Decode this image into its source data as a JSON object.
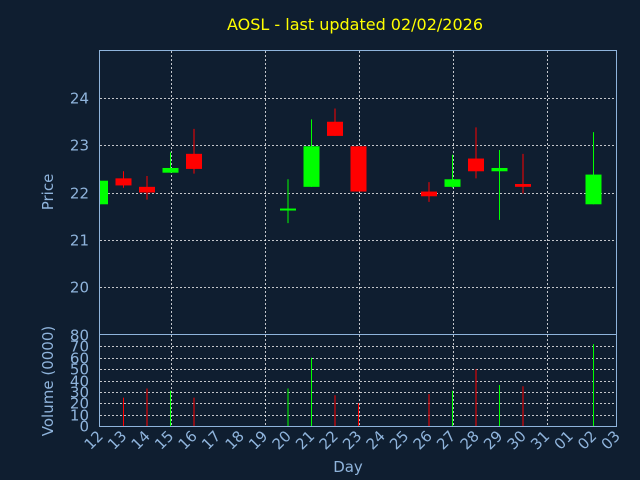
{
  "chart_data": {
    "type": "candlestick",
    "title": "AOSL - last updated 02/02/2026",
    "xlabel": "Day",
    "colors": {
      "background": "#0f1e30",
      "plot_border": "#8fb4dc",
      "grid": "#ffffff",
      "up": "#00ff00",
      "down": "#ff0000",
      "title": "#ffff00",
      "text": "#8fb4dc"
    },
    "x_ticks": [
      "12",
      "13",
      "14",
      "15",
      "16",
      "17",
      "18",
      "19",
      "20",
      "21",
      "22",
      "23",
      "24",
      "25",
      "26",
      "27",
      "28",
      "29",
      "30",
      "31",
      "01",
      "02",
      "03"
    ],
    "price_panel": {
      "ylabel": "Price",
      "ylim": [
        19.0,
        25.0
      ],
      "y_ticks": [
        20,
        21,
        22,
        23,
        24
      ],
      "candles": [
        {
          "day": "12",
          "open": 21.75,
          "close": 22.25,
          "high": 22.25,
          "low": 21.75
        },
        {
          "day": "13",
          "open": 22.3,
          "close": 22.15,
          "high": 22.45,
          "low": 22.1
        },
        {
          "day": "14",
          "open": 22.12,
          "close": 22.0,
          "high": 22.35,
          "low": 21.85
        },
        {
          "day": "15",
          "open": 22.42,
          "close": 22.52,
          "high": 22.85,
          "low": 22.42
        },
        {
          "day": "16",
          "open": 22.82,
          "close": 22.5,
          "high": 23.35,
          "low": 22.4
        },
        {
          "day": "20",
          "open": 21.62,
          "close": 21.66,
          "high": 22.28,
          "low": 21.35
        },
        {
          "day": "21",
          "open": 22.12,
          "close": 22.98,
          "high": 23.55,
          "low": 22.12
        },
        {
          "day": "22",
          "open": 23.5,
          "close": 23.2,
          "high": 23.78,
          "low": 23.2
        },
        {
          "day": "23",
          "open": 22.98,
          "close": 22.02,
          "high": 22.98,
          "low": 22.02
        },
        {
          "day": "26",
          "open": 22.02,
          "close": 21.92,
          "high": 22.22,
          "low": 21.8
        },
        {
          "day": "27",
          "open": 22.12,
          "close": 22.28,
          "high": 22.8,
          "low": 22.1
        },
        {
          "day": "28",
          "open": 22.72,
          "close": 22.45,
          "high": 23.38,
          "low": 22.3
        },
        {
          "day": "29",
          "open": 22.45,
          "close": 22.52,
          "high": 22.9,
          "low": 21.42
        },
        {
          "day": "30",
          "open": 22.18,
          "close": 22.12,
          "high": 22.82,
          "low": 21.98
        },
        {
          "day": "02",
          "open": 21.75,
          "close": 22.38,
          "high": 23.28,
          "low": 21.75
        }
      ]
    },
    "volume_panel": {
      "ylabel": "Volume (0000)",
      "ylim": [
        0,
        80
      ],
      "y_ticks": [
        0,
        10,
        20,
        30,
        40,
        50,
        60,
        70,
        80
      ],
      "bars": [
        {
          "day": "13",
          "value": 25,
          "direction": "down"
        },
        {
          "day": "14",
          "value": 33,
          "direction": "down"
        },
        {
          "day": "15",
          "value": 31,
          "direction": "up"
        },
        {
          "day": "16",
          "value": 25,
          "direction": "down"
        },
        {
          "day": "20",
          "value": 33,
          "direction": "up"
        },
        {
          "day": "21",
          "value": 60,
          "direction": "up"
        },
        {
          "day": "22",
          "value": 27,
          "direction": "down"
        },
        {
          "day": "23",
          "value": 20,
          "direction": "down"
        },
        {
          "day": "26",
          "value": 28,
          "direction": "down"
        },
        {
          "day": "27",
          "value": 31,
          "direction": "up"
        },
        {
          "day": "28",
          "value": 50,
          "direction": "down"
        },
        {
          "day": "29",
          "value": 36,
          "direction": "up"
        },
        {
          "day": "30",
          "value": 35,
          "direction": "down"
        },
        {
          "day": "02",
          "value": 72,
          "direction": "up"
        }
      ]
    }
  }
}
